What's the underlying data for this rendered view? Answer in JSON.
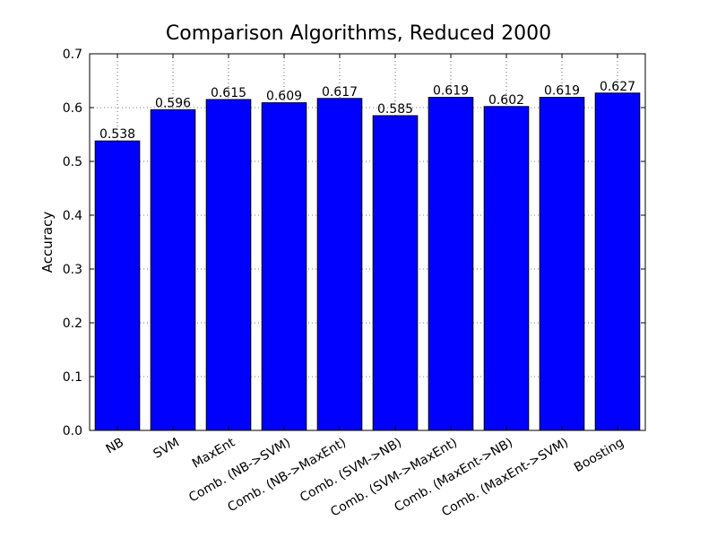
{
  "chart_data": {
    "type": "bar",
    "title": "Comparison Algorithms, Reduced 2000",
    "xlabel": "",
    "ylabel": "Accuracy",
    "ylim": [
      0,
      0.7
    ],
    "yticks": [
      "0.0",
      "0.1",
      "0.2",
      "0.3",
      "0.4",
      "0.5",
      "0.6",
      "0.7"
    ],
    "grid": true,
    "categories": [
      "NB",
      "SVM",
      "MaxEnt",
      "Comb. (NB->SVM)",
      "Comb. (NB->MaxEnt)",
      "Comb. (SVM->NB)",
      "Comb. (SVM->MaxEnt)",
      "Comb. (MaxEnt->NB)",
      "Comb. (MaxEnt->SVM)",
      "Boosting"
    ],
    "values": [
      0.538,
      0.596,
      0.615,
      0.609,
      0.617,
      0.585,
      0.619,
      0.602,
      0.619,
      0.627
    ],
    "value_labels": [
      "0.538",
      "0.596",
      "0.615",
      "0.609",
      "0.617",
      "0.585",
      "0.619",
      "0.602",
      "0.619",
      "0.627"
    ],
    "bar_color": "#0000ff"
  }
}
